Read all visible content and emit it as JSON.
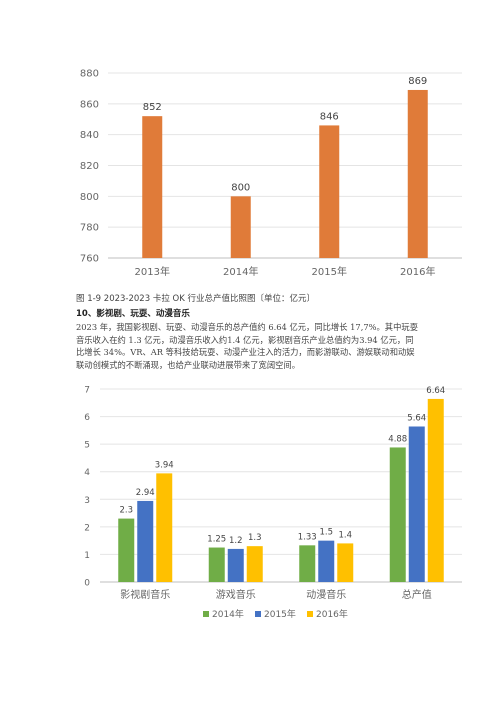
{
  "caption": "图 1-9 2023-2023 卡拉 OK 行业总产值比照图〔单位：亿元〕",
  "heading": "10、影视剧、玩耍、动漫音乐",
  "paragraph_lines": [
    "2023 年，我国影视剧、玩耍、动漫音乐的总产值约 6.64 亿元，同比增长 17,7%。其中玩耍",
    "音乐收入在约 1.3 亿元，动漫音乐收入约1.4 亿元，影视剧音乐产业总值约为3.94 亿元，同",
    "比增长 34%。VR、AR 等科技给玩耍、动漫产业注入的活力，而影游联动、游娱联动和动娱",
    "联动创模式的不断涌现，也给产业联动进展带来了宽阔空间。"
  ],
  "chart_data": [
    {
      "type": "bar",
      "categories": [
        "2013年",
        "2014年",
        "2015年",
        "2016年"
      ],
      "values": [
        852,
        800,
        846,
        869
      ],
      "data_labels": [
        "852",
        "800",
        "846",
        "869"
      ],
      "ylim": [
        760,
        880
      ],
      "yticks": [
        "760",
        "780",
        "800",
        "820",
        "840",
        "860",
        "880"
      ],
      "grid": true,
      "colors": {
        "bar": "#E07B39",
        "grid": "#e4e4e4",
        "axis": "#bfbfbf",
        "text": "#666666"
      }
    },
    {
      "type": "bar",
      "categories": [
        "影视剧音乐",
        "游戏音乐",
        "动漫音乐",
        "总产值"
      ],
      "series": [
        {
          "name": "2014年",
          "color": "#70AD47",
          "values": [
            2.3,
            1.25,
            1.33,
            4.88
          ],
          "labels": [
            "2.3",
            "1.25",
            "1.33",
            "4.88"
          ]
        },
        {
          "name": "2015年",
          "color": "#4472C4",
          "values": [
            2.94,
            1.2,
            1.5,
            5.64
          ],
          "labels": [
            "2.94",
            "1.2",
            "1.5",
            "5.64"
          ]
        },
        {
          "name": "2016年",
          "color": "#FFC000",
          "values": [
            3.94,
            1.3,
            1.4,
            6.64
          ],
          "labels": [
            "3.94",
            "1.3",
            "1.4",
            "6.64"
          ]
        }
      ],
      "ylim": [
        0,
        7
      ],
      "yticks": [
        "0",
        "1",
        "2",
        "3",
        "4",
        "5",
        "6",
        "7"
      ],
      "grid": true,
      "legend": "bottom",
      "colors": {
        "grid": "#e4e4e4",
        "axis": "#bfbfbf",
        "text": "#666666"
      }
    }
  ]
}
